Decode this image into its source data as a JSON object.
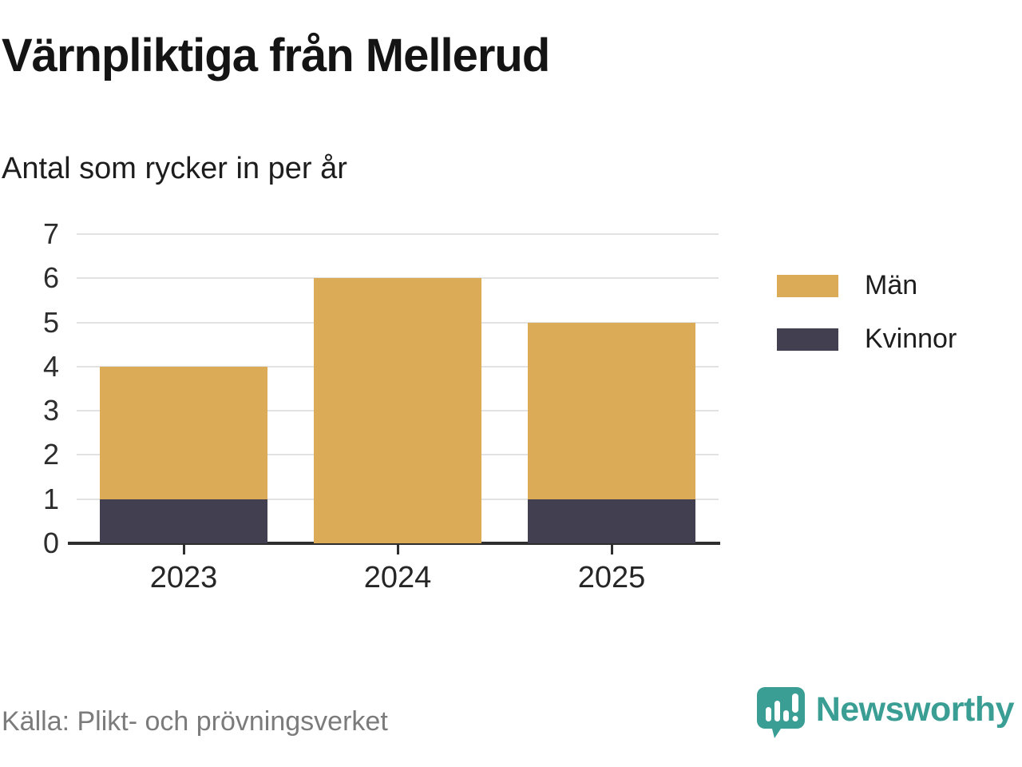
{
  "header": {
    "title": "Värnpliktiga från Mellerud",
    "subtitle": "Antal som rycker in per år"
  },
  "chart_data": {
    "type": "bar",
    "stacked": true,
    "categories": [
      "2023",
      "2024",
      "2025"
    ],
    "series": [
      {
        "name": "Kvinnor",
        "color": "#423f50",
        "values": [
          1,
          0,
          1
        ]
      },
      {
        "name": "Män",
        "color": "#dbab57",
        "values": [
          3,
          6,
          4
        ]
      }
    ],
    "totals": [
      4,
      6,
      5
    ],
    "title": "Värnpliktiga från Mellerud",
    "subtitle": "Antal som rycker in per år",
    "xlabel": "",
    "ylabel": "",
    "ylim": [
      0,
      7
    ],
    "yticks": [
      0,
      1,
      2,
      3,
      4,
      5,
      6,
      7
    ],
    "grid": true,
    "legend_position": "right"
  },
  "legend": {
    "items": [
      {
        "label": "Män",
        "color": "#dbab57"
      },
      {
        "label": "Kvinnor",
        "color": "#423f50"
      }
    ]
  },
  "footer": {
    "source": "Källa: Plikt- och prövningsverket",
    "brand": "Newsworthy",
    "brand_color": "#3b9e95"
  },
  "colors": {
    "men": "#dbab57",
    "women": "#423f50",
    "grid": "#e2e2e2",
    "axis": "#2e2e2e",
    "source_text": "#7b7b7b",
    "brand_teal": "#3b9e95"
  }
}
